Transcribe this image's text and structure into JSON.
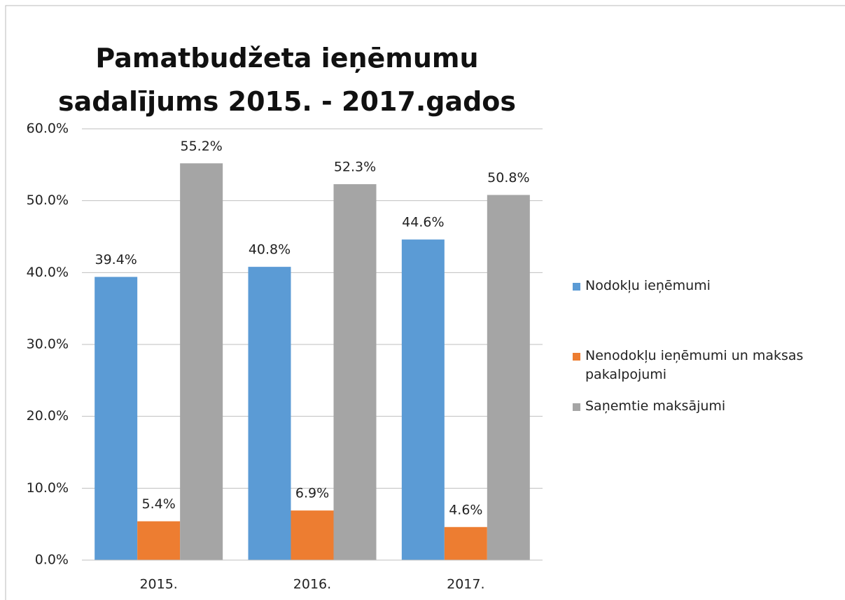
{
  "chart_data": {
    "type": "bar",
    "title": "Pamatbudžeta ieņēmumu sadalījums 2015. - 2017.gados",
    "categories": [
      "2015.",
      "2016.",
      "2017."
    ],
    "series": [
      {
        "name": "Nodokļu ieņēmumi",
        "color": "#5b9bd5",
        "values": [
          39.4,
          40.8,
          44.6
        ],
        "value_labels": [
          "39.4%",
          "40.8%",
          "44.6%"
        ]
      },
      {
        "name": "Nenodokļu ieņēmumi un maksas pakalpojumi",
        "color": "#ed7d31",
        "values": [
          5.4,
          6.9,
          4.6
        ],
        "value_labels": [
          "5.4%",
          "6.9%",
          "4.6%"
        ]
      },
      {
        "name": "Saņemtie maksājumi",
        "color": "#a5a5a5",
        "values": [
          55.2,
          52.3,
          50.8
        ],
        "value_labels": [
          "55.2%",
          "52.3%",
          "50.8%"
        ]
      }
    ],
    "ylim": [
      0,
      60
    ],
    "yticks": [
      {
        "value": 0,
        "label": "0.0%"
      },
      {
        "value": 10,
        "label": "10.0%"
      },
      {
        "value": 20,
        "label": "20.0%"
      },
      {
        "value": 30,
        "label": "30.0%"
      },
      {
        "value": 40,
        "label": "40.0%"
      },
      {
        "value": 50,
        "label": "50.0%"
      },
      {
        "value": 60,
        "label": "60.0%"
      }
    ],
    "grid": true,
    "legend": "right"
  }
}
